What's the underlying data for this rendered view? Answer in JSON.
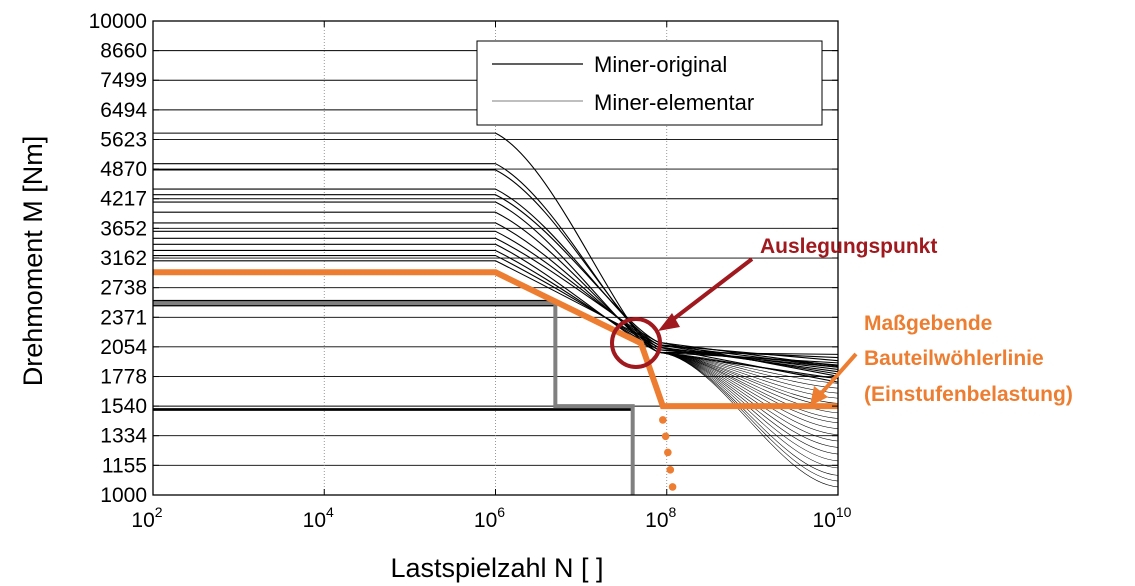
{
  "chart_data": {
    "type": "line",
    "xlabel": "Lastspielzahl N [ ]",
    "ylabel": "Drehmoment M [Nm]",
    "x_scale": "log",
    "y_scale": "log",
    "xlim": [
      100,
      10000000000
    ],
    "ylim": [
      1000,
      10000
    ],
    "x_ticks": [
      {
        "value": 100,
        "base": "10",
        "exp": "2"
      },
      {
        "value": 10000,
        "base": "10",
        "exp": "4"
      },
      {
        "value": 1000000,
        "base": "10",
        "exp": "6"
      },
      {
        "value": 100000000,
        "base": "10",
        "exp": "8"
      },
      {
        "value": 10000000000,
        "base": "10",
        "exp": "10"
      }
    ],
    "y_ticks": [
      10000,
      8660,
      7499,
      6494,
      5623,
      4870,
      4217,
      3652,
      3162,
      2738,
      2371,
      2054,
      1778,
      1540,
      1334,
      1155,
      1000
    ],
    "grid": true,
    "legend": {
      "position": "top-right",
      "entries": [
        {
          "label": "Miner-original",
          "color": "#000000",
          "width": 1.3
        },
        {
          "label": "Miner-elementar",
          "color": "#000000",
          "width": 0.6
        }
      ]
    },
    "miner_curves": {
      "knee_x": 1000000,
      "converge_x": 80000000,
      "converge_y": 2000,
      "levels": [
        5800,
        5000,
        4850,
        4420,
        4300,
        4150,
        3950,
        3750,
        3600,
        3480,
        3380,
        3280,
        3200,
        3120
      ],
      "endings": [
        1980,
        1880,
        1840,
        1920,
        1870,
        1900,
        1860,
        1820,
        1800,
        1780,
        1760,
        1950,
        1730,
        1860
      ]
    },
    "miner_elementar_fan": {
      "origin_x": 80000000,
      "origin_y": 2000,
      "end_x": 10000000000,
      "end_levels": [
        1760,
        1720,
        1680,
        1640,
        1600,
        1560,
        1530,
        1490,
        1450,
        1420,
        1380,
        1340,
        1300,
        1260,
        1220,
        1180,
        1140,
        1100,
        1070,
        1040
      ]
    },
    "black_bands": [
      {
        "y": [
          2500,
          2580
        ],
        "x": [
          100,
          5000000
        ]
      },
      {
        "y": [
          1505,
          1525
        ],
        "x": [
          100,
          40000000
        ]
      }
    ],
    "gray_step_line": {
      "color": "#808080",
      "points": [
        [
          100,
          2540
        ],
        [
          5000000,
          2540
        ],
        [
          5000000,
          1540
        ],
        [
          40000000,
          1540
        ],
        [
          40000000,
          1000
        ]
      ]
    },
    "series": [
      {
        "name": "Maßgebende Bauteilwöhlerlinie (Einstufenbelastung)",
        "color": "#ED7D31",
        "points": [
          [
            100,
            2950
          ],
          [
            1000000,
            2950
          ],
          [
            50000000,
            2090
          ],
          [
            90000000,
            1540
          ],
          [
            10000000000,
            1540
          ]
        ]
      }
    ],
    "dotted_extension": {
      "color": "#ED7D31",
      "points": [
        [
          90000000,
          1440
        ],
        [
          97000000,
          1330
        ],
        [
          103000000,
          1230
        ],
        [
          110000000,
          1130
        ],
        [
          117000000,
          1040
        ]
      ]
    },
    "annotations": [
      {
        "text": "Auslegungspunkt",
        "color": "#A0191E",
        "x": 55000000,
        "y": 2080
      },
      {
        "lines": [
          "Maßgebende",
          "Bauteilwöhlerlinie",
          "(Einstufenbelastung)"
        ],
        "color": "#ED7D31"
      }
    ]
  }
}
